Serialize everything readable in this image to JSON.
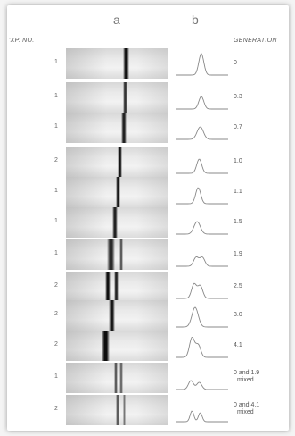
{
  "headers": {
    "exp_no": "'XP. NO.",
    "generation": "GENERATION",
    "col_a": "a",
    "col_b": "b"
  },
  "rows": [
    {
      "exp": "1",
      "generation": "0"
    },
    {
      "exp": "1",
      "generation": "0.3"
    },
    {
      "exp": "1",
      "generation": "0.7"
    },
    {
      "exp": "2",
      "generation": "1.0"
    },
    {
      "exp": "1",
      "generation": "1.1"
    },
    {
      "exp": "1",
      "generation": "1.5"
    },
    {
      "exp": "1",
      "generation": "1.9"
    },
    {
      "exp": "2",
      "generation": "2.5"
    },
    {
      "exp": "2",
      "generation": "3.0"
    },
    {
      "exp": "2",
      "generation": "4.1"
    },
    {
      "exp": "1",
      "generation": "0 and 1.9",
      "note": "mixed"
    },
    {
      "exp": "2",
      "generation": "0 and 4.1",
      "note": "mixed"
    }
  ]
}
